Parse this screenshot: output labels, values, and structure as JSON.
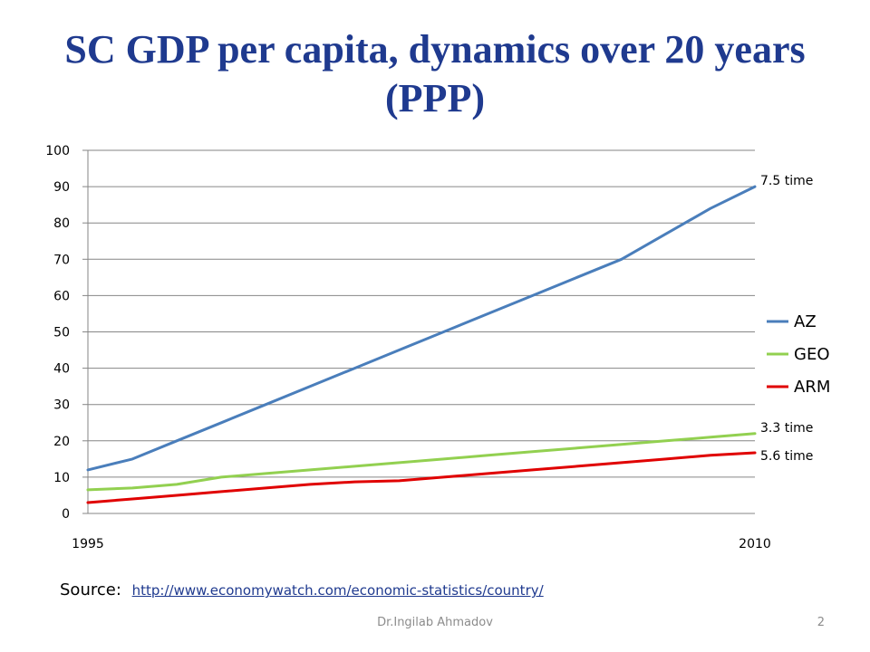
{
  "slide": {
    "title": "SC GDP per capita, dynamics over 20 years (PPP)",
    "source_label": "Source:",
    "source_link": "http://www.economywatch.com/economic-statistics/country/",
    "footer_author": "Dr.Ingilab Ahmadov",
    "page_number": "2"
  },
  "chart_data": {
    "type": "line",
    "title": "",
    "xlabel": "",
    "ylabel": "",
    "x": [
      1995,
      1996,
      1997,
      1998,
      1999,
      2000,
      2001,
      2002,
      2003,
      2004,
      2005,
      2006,
      2007,
      2008,
      2009,
      2010
    ],
    "x_tick_labels": [
      "1995",
      "2010"
    ],
    "ylim": [
      0,
      100
    ],
    "y_ticks": [
      0,
      10,
      20,
      30,
      40,
      50,
      60,
      70,
      80,
      90,
      100
    ],
    "grid": true,
    "legend_position": "right",
    "series": [
      {
        "name": "AZ",
        "color": "#4a7ebb",
        "values": [
          12,
          15,
          20,
          25,
          30,
          35,
          40,
          45,
          50,
          55,
          60,
          65,
          70,
          77,
          84,
          90
        ]
      },
      {
        "name": "GEO",
        "color": "#92d050",
        "values": [
          6.5,
          7,
          8,
          10,
          11,
          12,
          13,
          14,
          15,
          16,
          17,
          18,
          19,
          20,
          21,
          22
        ]
      },
      {
        "name": "ARM",
        "color": "#e00000",
        "values": [
          3,
          4,
          5,
          6,
          7,
          8,
          8.7,
          9,
          10,
          11,
          12,
          13,
          14,
          15,
          16,
          16.7
        ]
      }
    ],
    "annotations": [
      {
        "series": "AZ",
        "text": "7.5 time"
      },
      {
        "series": "GEO",
        "text": "3.3 time"
      },
      {
        "series": "ARM",
        "text": "5.6 time"
      }
    ]
  }
}
